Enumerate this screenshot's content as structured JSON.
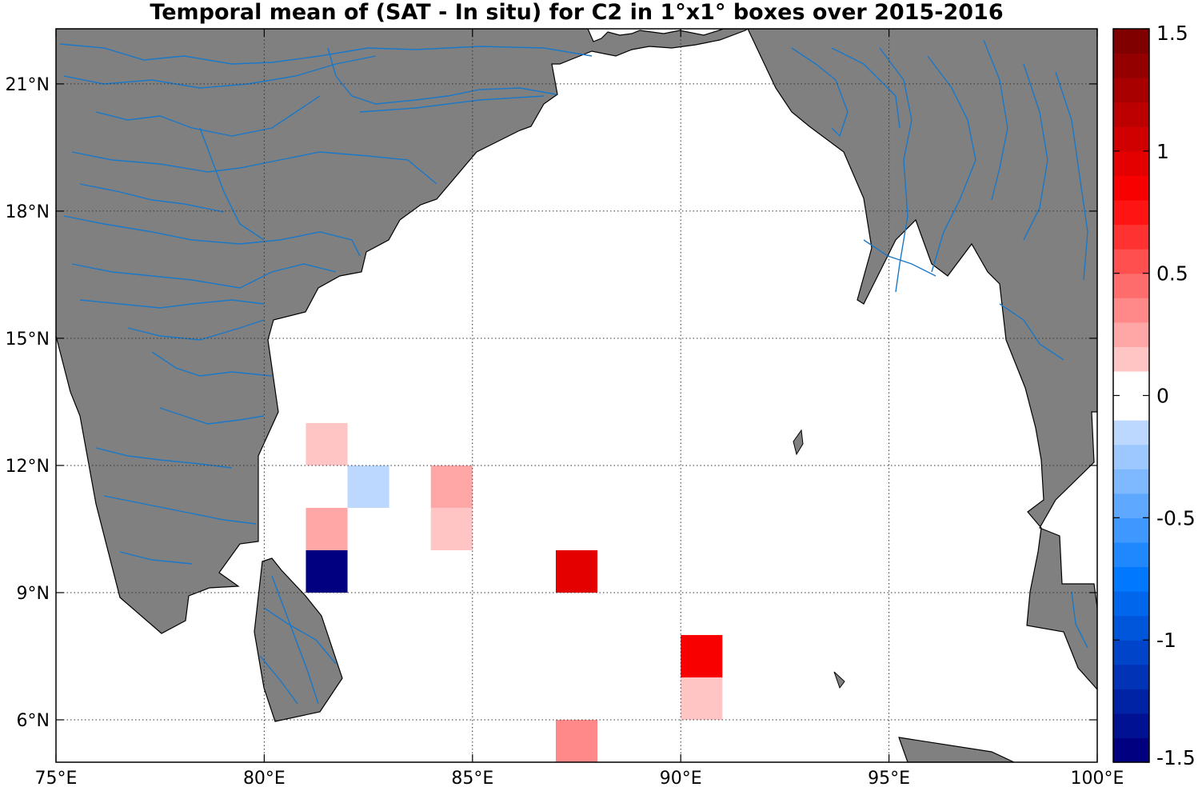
{
  "title": "Temporal mean of (SAT - In situ) for C2 in 1°x1° boxes over 2015-2016",
  "map": {
    "lon_range": [
      75,
      100
    ],
    "lat_range": [
      5,
      22.3
    ],
    "lon_ticks": [
      {
        "value": 75,
        "label": "75°E"
      },
      {
        "value": 80,
        "label": "80°E"
      },
      {
        "value": 85,
        "label": "85°E"
      },
      {
        "value": 90,
        "label": "90°E"
      },
      {
        "value": 95,
        "label": "95°E"
      },
      {
        "value": 100,
        "label": "100°E"
      }
    ],
    "lat_ticks": [
      {
        "value": 6,
        "label": "6°N"
      },
      {
        "value": 9,
        "label": "9°N"
      },
      {
        "value": 12,
        "label": "12°N"
      },
      {
        "value": 15,
        "label": "15°N"
      },
      {
        "value": 18,
        "label": "18°N"
      },
      {
        "value": 21,
        "label": "21°N"
      }
    ],
    "grid": true,
    "land_color": "#808080",
    "river_color": "#1a78c8",
    "ocean_color": "#ffffff"
  },
  "chart_data": {
    "type": "heatmap",
    "box_size_deg": 1,
    "cells": [
      {
        "lon": 81,
        "lat": 12,
        "value": 0.15
      },
      {
        "lon": 82,
        "lat": 11,
        "value": -0.15
      },
      {
        "lon": 84,
        "lat": 11,
        "value": 0.25
      },
      {
        "lon": 84,
        "lat": 10,
        "value": 0.15
      },
      {
        "lon": 81,
        "lat": 10,
        "value": 0.25
      },
      {
        "lon": 81,
        "lat": 9,
        "value": -1.5
      },
      {
        "lon": 87,
        "lat": 9,
        "value": 0.95
      },
      {
        "lon": 90,
        "lat": 7,
        "value": 0.8
      },
      {
        "lon": 90,
        "lat": 6,
        "value": 0.15
      },
      {
        "lon": 87,
        "lat": 5,
        "value": 0.35
      }
    ],
    "colorbar": {
      "range": [
        -1.5,
        1.5
      ],
      "levels": 30,
      "ticks": [
        {
          "value": 1.5,
          "label": "1.5"
        },
        {
          "value": 1,
          "label": "1"
        },
        {
          "value": 0.5,
          "label": "0.5"
        },
        {
          "value": 0,
          "label": "0"
        },
        {
          "value": -0.5,
          "label": "-0.5"
        },
        {
          "value": -1,
          "label": "-1"
        },
        {
          "value": -1.5,
          "label": "-1.5"
        }
      ]
    }
  }
}
